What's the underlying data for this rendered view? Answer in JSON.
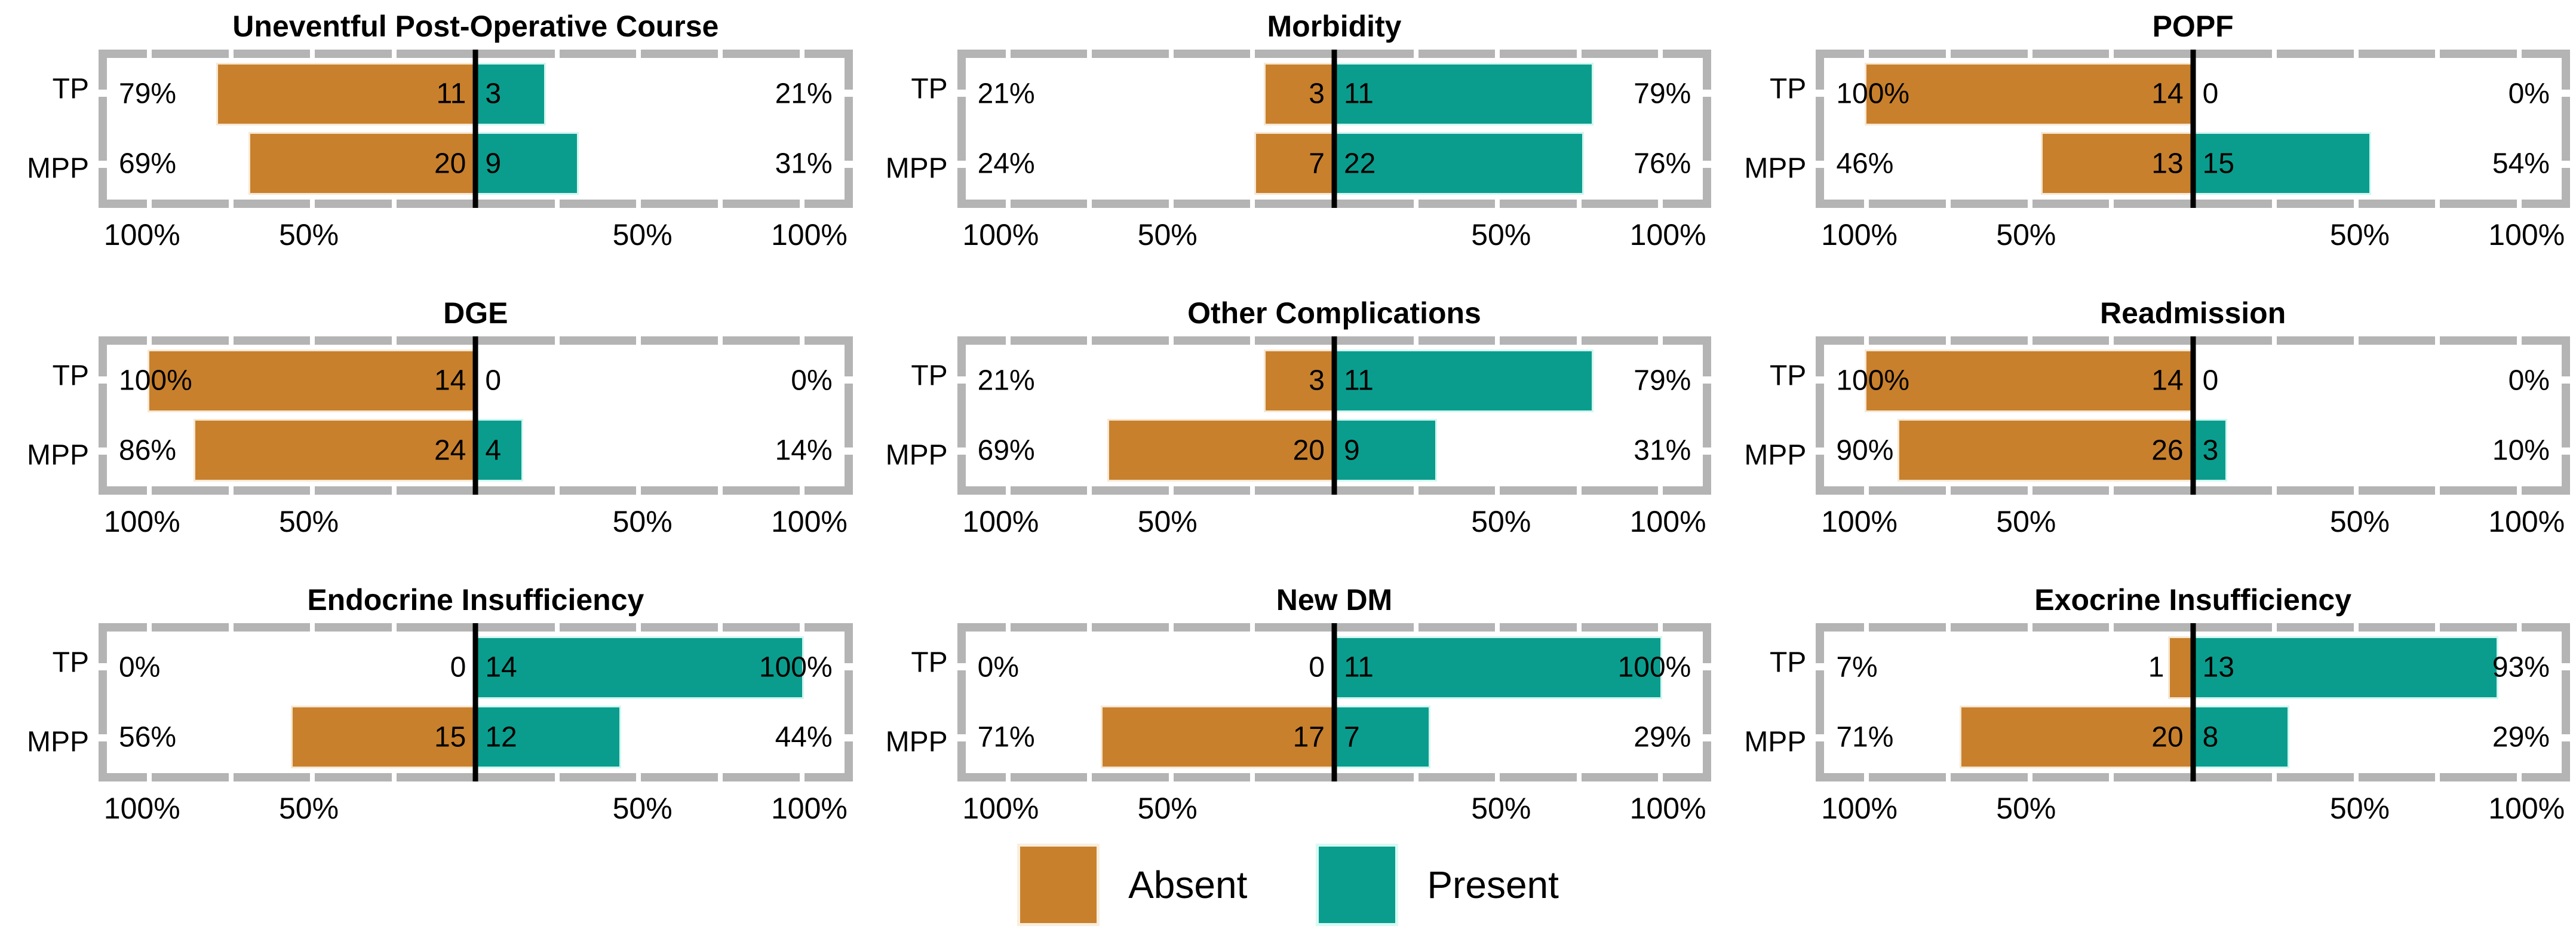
{
  "colors": {
    "absent": "#c8802d",
    "present": "#0a9d8d",
    "frame_gray": "#b4b4b4",
    "zero_line": "#000000"
  },
  "legend": {
    "items": [
      {
        "key": "absent",
        "label": "Absent"
      },
      {
        "key": "present",
        "label": "Present"
      }
    ]
  },
  "chart_data": {
    "type": "bar",
    "subtype": "diverging-paired-horizontal",
    "groups": [
      "TP",
      "MPP"
    ],
    "legend_entries": [
      "Absent",
      "Present"
    ],
    "legend_colors": [
      "#c8802d",
      "#0a9d8d"
    ],
    "axis": {
      "range_pct": [
        -100,
        100
      ],
      "minor_tick_step_pct": 25,
      "tick_labels": [
        "100%",
        "50%",
        "50%",
        "100%"
      ],
      "tick_label_values": [
        -100,
        -50,
        50,
        100
      ],
      "scale_fraction_per_100pct": 44.24,
      "grid": false,
      "legend_position": "bottom-center"
    },
    "panels": [
      {
        "title": "Uneventful Post-Operative Course",
        "rows": [
          {
            "group": "TP",
            "left_pct_label": "79%",
            "absent_count": "11",
            "present_count": "3",
            "right_pct_label": "21%",
            "absent_pct": 79,
            "present_pct": 21
          },
          {
            "group": "MPP",
            "left_pct_label": "69%",
            "absent_count": "20",
            "present_count": "9",
            "right_pct_label": "31%",
            "absent_pct": 69,
            "present_pct": 31
          }
        ]
      },
      {
        "title": "Morbidity",
        "rows": [
          {
            "group": "TP",
            "left_pct_label": "21%",
            "absent_count": "3",
            "present_count": "11",
            "right_pct_label": "79%",
            "absent_pct": 21,
            "present_pct": 79
          },
          {
            "group": "MPP",
            "left_pct_label": "24%",
            "absent_count": "7",
            "present_count": "22",
            "right_pct_label": "76%",
            "absent_pct": 24,
            "present_pct": 76
          }
        ]
      },
      {
        "title": "POPF",
        "rows": [
          {
            "group": "TP",
            "left_pct_label": "100%",
            "absent_count": "14",
            "present_count": "0",
            "right_pct_label": "0%",
            "absent_pct": 100,
            "present_pct": 0
          },
          {
            "group": "MPP",
            "left_pct_label": "46%",
            "absent_count": "13",
            "present_count": "15",
            "right_pct_label": "54%",
            "absent_pct": 46,
            "present_pct": 54
          }
        ]
      },
      {
        "title": "DGE",
        "rows": [
          {
            "group": "TP",
            "left_pct_label": "100%",
            "absent_count": "14",
            "present_count": "0",
            "right_pct_label": "0%",
            "absent_pct": 100,
            "present_pct": 0
          },
          {
            "group": "MPP",
            "left_pct_label": "86%",
            "absent_count": "24",
            "present_count": "4",
            "right_pct_label": "14%",
            "absent_pct": 86,
            "present_pct": 14
          }
        ]
      },
      {
        "title": "Other Complications",
        "rows": [
          {
            "group": "TP",
            "left_pct_label": "21%",
            "absent_count": "3",
            "present_count": "11",
            "right_pct_label": "79%",
            "absent_pct": 21,
            "present_pct": 79
          },
          {
            "group": "MPP",
            "left_pct_label": "69%",
            "absent_count": "20",
            "present_count": "9",
            "right_pct_label": "31%",
            "absent_pct": 69,
            "present_pct": 31
          }
        ]
      },
      {
        "title": "Readmission",
        "rows": [
          {
            "group": "TP",
            "left_pct_label": "100%",
            "absent_count": "14",
            "present_count": "0",
            "right_pct_label": "0%",
            "absent_pct": 100,
            "present_pct": 0
          },
          {
            "group": "MPP",
            "left_pct_label": "90%",
            "absent_count": "26",
            "present_count": "3",
            "right_pct_label": "10%",
            "absent_pct": 90,
            "present_pct": 10
          }
        ]
      },
      {
        "title": "Endocrine Insufficiency",
        "rows": [
          {
            "group": "TP",
            "left_pct_label": "0%",
            "absent_count": "0",
            "present_count": "14",
            "right_pct_label": "100%",
            "absent_pct": 0,
            "present_pct": 100
          },
          {
            "group": "MPP",
            "left_pct_label": "56%",
            "absent_count": "15",
            "present_count": "12",
            "right_pct_label": "44%",
            "absent_pct": 56,
            "present_pct": 44
          }
        ]
      },
      {
        "title": "New DM",
        "rows": [
          {
            "group": "TP",
            "left_pct_label": "0%",
            "absent_count": "0",
            "present_count": "11",
            "right_pct_label": "100%",
            "absent_pct": 0,
            "present_pct": 100
          },
          {
            "group": "MPP",
            "left_pct_label": "71%",
            "absent_count": "17",
            "present_count": "7",
            "right_pct_label": "29%",
            "absent_pct": 71,
            "present_pct": 29
          }
        ]
      },
      {
        "title": "Exocrine Insufficiency",
        "rows": [
          {
            "group": "TP",
            "left_pct_label": "7%",
            "absent_count": "1",
            "present_count": "13",
            "right_pct_label": "93%",
            "absent_pct": 7,
            "present_pct": 93
          },
          {
            "group": "MPP",
            "left_pct_label": "71%",
            "absent_count": "20",
            "present_count": "8",
            "right_pct_label": "29%",
            "absent_pct": 71,
            "present_pct": 29
          }
        ]
      }
    ]
  }
}
